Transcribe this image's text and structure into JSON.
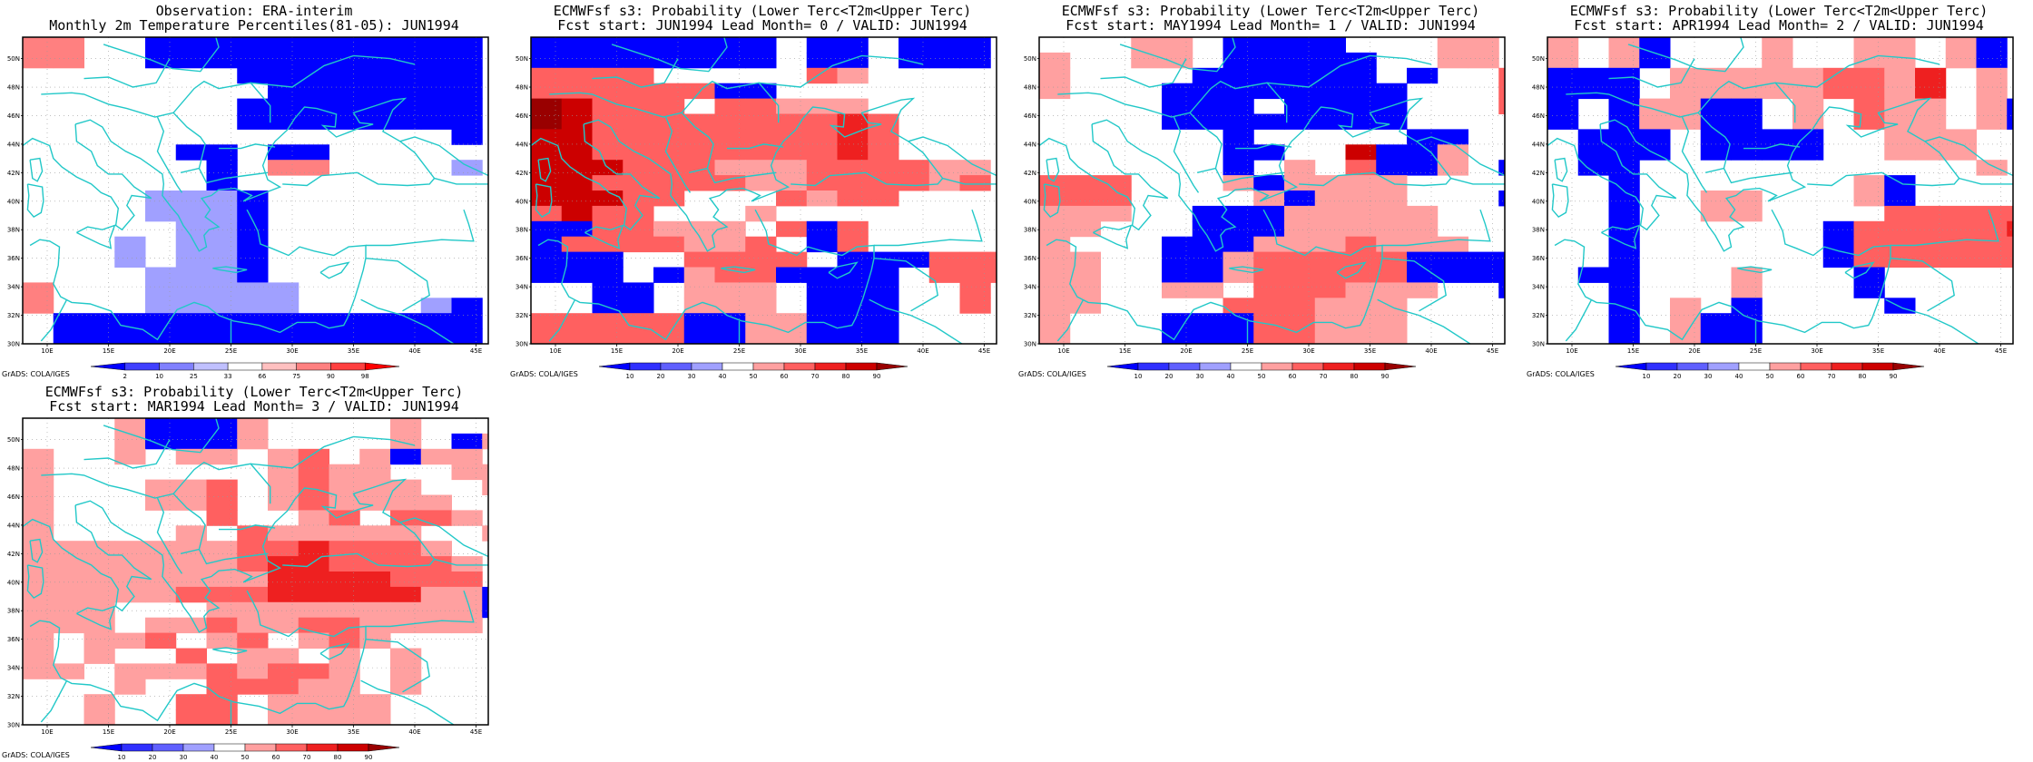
{
  "credit": "GrADS: COLA/IGES",
  "colors": {
    "coastline": "#22c8c8",
    "frame": "#000000",
    "blue_scale": [
      "#0000ff",
      "#3030ff",
      "#6060ff",
      "#a0a0ff"
    ],
    "red_scale": [
      "#ffa0a0",
      "#ff6060",
      "#ee2020",
      "#cc0000",
      "#990000"
    ]
  },
  "panels": [
    {
      "title_line1": "Observation: ERA-interim",
      "title_line2": "Monthly 2m Temperature Percentiles(81-05): JUN1994",
      "lon_labels": [
        "10E",
        "15E",
        "20E",
        "25E",
        "30E",
        "35E",
        "40E",
        "45E"
      ],
      "lat_labels": [
        "30N",
        "32N",
        "34N",
        "36N",
        "38N",
        "40N",
        "42N",
        "44N",
        "46N",
        "48N",
        "50N"
      ],
      "colorbar": {
        "labels": [
          "2",
          "10",
          "25",
          "33",
          "66",
          "75",
          "90",
          "98"
        ],
        "colors": [
          "#0000ff",
          "#4040ff",
          "#8080ff",
          "#c0c0ff",
          "#ffffff",
          "#ffc0c0",
          "#ff8080",
          "#ff4040",
          "#ff0000"
        ]
      },
      "grid": [
        "3300bbbbbbbbbbb",
        "3300bbbbbbbbbbb",
        "0000000bbbbbbbb",
        "00000000bbbbbbb",
        "0000000bbbbbbbb",
        "0000000bbbbbbbb",
        "00000000000000b",
        "00000bb0bb00000",
        "000000b0330000a",
        "000000b00000000",
        "0000aaab0000000",
        "0000aaab0000000",
        "00000aab0000000",
        "000a0aab0000000",
        "000a0aab0000000",
        "0000aaab0000000",
        "3000aaaaa000000",
        "3000aaaaa0000ab",
        "0bbbbbbbbbbbbbb",
        "0bbbbbbbbbbbbbb"
      ]
    },
    {
      "title_line1": "ECMWFsf s3: Probability (Lower Terc<T2m<Upper Terc)",
      "title_line2": "Fcst start: JUN1994  Lead Month= 0 / VALID: JUN1994",
      "lon_labels": [
        "10E",
        "15E",
        "20E",
        "25E",
        "30E",
        "35E",
        "40E",
        "45E"
      ],
      "lat_labels": [
        "30N",
        "32N",
        "34N",
        "36N",
        "38N",
        "40N",
        "42N",
        "44N",
        "46N",
        "48N",
        "50N"
      ],
      "colorbar": {
        "labels": [
          "10",
          "20",
          "30",
          "40",
          "50",
          "60",
          "70",
          "80",
          "90"
        ],
        "colors": [
          "#0000ff",
          "#3030ff",
          "#6060ff",
          "#a0a0ff",
          "#ffffff",
          "#ffa0a0",
          "#ff6060",
          "#ee2020",
          "#cc0000",
          "#990000"
        ]
      },
      "grid": [
        "bbbbbbbb0bb0bbb",
        "bbbbbbbb0bb0bbb",
        "22220000021000",
        "222222bb0000000",
        "5422202211100000",
        "542222222232000",
        "442222222232000",
        "442222222232000",
        "444222111222211",
        "442222211222212",
        "44422000212200",
        "2422000100000000",
        "bb2211102b20000",
        "b22221120b20000",
        "bbb0022220bbb222",
        "bbb0b122bbbb0222",
        "00bb01110bbb002",
        "00bb01110bbb002",
        "22222bb11bbb0000",
        "22222bb11bbb0000"
      ]
    },
    {
      "title_line1": "ECMWFsf s3: Probability (Lower Terc<T2m<Upper Terc)",
      "title_line2": "Fcst start: MAY1994  Lead Month= 1 / VALID: JUN1994",
      "lon_labels": [
        "10E",
        "15E",
        "20E",
        "25E",
        "30E",
        "35E",
        "40E",
        "45E"
      ],
      "lat_labels": [
        "30N",
        "32N",
        "34N",
        "36N",
        "38N",
        "40N",
        "42N",
        "44N",
        "46N",
        "48N",
        "50N"
      ],
      "colorbar": {
        "labels": [
          "10",
          "20",
          "30",
          "40",
          "50",
          "60",
          "70",
          "80",
          "90"
        ],
        "colors": [
          "#0000ff",
          "#3030ff",
          "#6060ff",
          "#a0a0ff",
          "#ffffff",
          "#ffa0a0",
          "#ff6060",
          "#ee2020",
          "#cc0000",
          "#990000"
        ]
      },
      "grid": [
        "000110bbbb000110",
        "100110bbbbb00110",
        "10000bbbbbb0b002",
        "1000bbbbbbbb0002",
        "0000bbb0bbbb0002",
        "0000bbbbbbbb0000",
        "000000b00000bb00",
        "000000bb004bb100",
        "000000b0102bb10b",
        "2220001b11110000",
        "22200001b111000b",
        "11100bbb11111000",
        "11000bbb111110000",
        "1000bbb11121110000",
        "1100bb122222bbbb00",
        "1100bb122222bbbb00",
        "110011022211100bb",
        "1100002221110000bb",
        "1000bbb22111000000",
        "1000bbb22111000000"
      ]
    },
    {
      "title_line1": "ECMWFsf s3: Probability (Lower Terc<T2m<Upper Terc)",
      "title_line2": "Fcst start: APR1994  Lead Month= 2 / VALID: JUN1994",
      "lon_labels": [
        "10E",
        "15E",
        "20E",
        "25E",
        "30E",
        "35E",
        "40E",
        "45E"
      ],
      "lat_labels": [
        "30N",
        "32N",
        "34N",
        "36N",
        "38N",
        "40N",
        "42N",
        "44N",
        "46N",
        "48N",
        "50N"
      ],
      "colorbar": {
        "labels": [
          "10",
          "20",
          "30",
          "40",
          "50",
          "60",
          "70",
          "80",
          "90"
        ],
        "colors": [
          "#0000ff",
          "#3030ff",
          "#6060ff",
          "#a0a0ff",
          "#ffffff",
          "#ffa0a0",
          "#ff6060",
          "#ee2020",
          "#cc0000",
          "#990000"
        ]
      },
      "grid": [
        "101b0001001101b0",
        "101b0001001101b0",
        "bbb01111122130100",
        "bbb01111122130100",
        "b0b11bb01021101bb",
        "b0b11bb01021101bb",
        "0bbb0bbbb0011100bb",
        "0bbb0bbbb0011100bb",
        "0bb0000000000010",
        "00b00000001b0000",
        "00b00110001b0000",
        "00b00110000222220",
        "00b000000b2222230",
        "00b000000b22222233",
        "00b000000b22222233",
        "0bb0001000b000001",
        "00b0001000b000001",
        "00b010b0000b00000",
        "00b01bb0000000000",
        "00b01bb0000000000"
      ]
    },
    {
      "title_line1": "ECMWFsf s3: Probability (Lower Terc<T2m<Upper Terc)",
      "title_line2": "Fcst start: MAR1994  Lead Month= 3 / VALID: JUN1994",
      "lon_labels": [
        "10E",
        "15E",
        "20E",
        "25E",
        "30E",
        "35E",
        "40E",
        "45E"
      ],
      "lat_labels": [
        "30N",
        "32N",
        "34N",
        "36N",
        "38N",
        "40N",
        "42N",
        "44N",
        "46N",
        "48N",
        "50N"
      ],
      "colorbar": {
        "labels": [
          "10",
          "20",
          "30",
          "40",
          "50",
          "60",
          "70",
          "80",
          "90"
        ],
        "colors": [
          "#0000ff",
          "#3030ff",
          "#6060ff",
          "#a0a0ff",
          "#ffffff",
          "#ffa0a0",
          "#ff6060",
          "#ee2020",
          "#cc0000",
          "#990000"
        ]
      },
      "grid": [
        "0001bbb100001000",
        "0001bbb1000010b11",
        "100101101201b11",
        "1000000012110011",
        "10001120121110011",
        "1000112012111100",
        "100000200120221001",
        "1000010211111001",
        "11111112232221000",
        "1111111233222210b0",
        "11111111333322200b0",
        "111112223333311b0",
        "111000111111111b0",
        "1110112112211110",
        "10112012012100000",
        "1010020110101000",
        "1101112122101000",
        "0001002221101000",
        "001002201111000",
        "001002201111000"
      ]
    }
  ]
}
